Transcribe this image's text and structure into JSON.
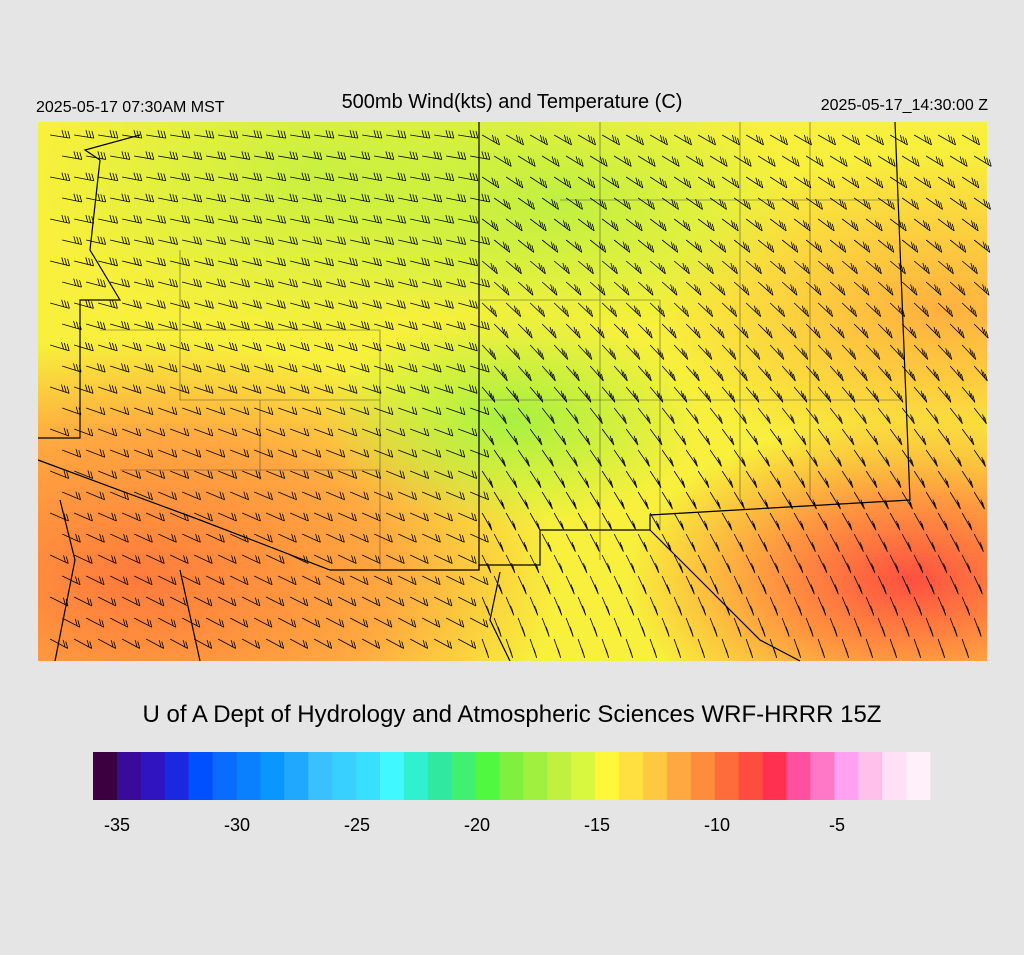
{
  "header": {
    "local_time": "2025-05-17 07:30AM MST",
    "title": "500mb Wind(kts) and Temperature (C)",
    "utc_time": "2025-05-17_14:30:00 Z"
  },
  "footer": "U of A Dept of Hydrology and Atmospheric Sciences WRF-HRRR 15Z",
  "colorbar": {
    "colors": [
      "#3a0040",
      "#3a0a9a",
      "#3014c0",
      "#1a28e0",
      "#0050ff",
      "#0a6cff",
      "#0a80ff",
      "#0a96ff",
      "#20a8ff",
      "#38c0ff",
      "#38d0ff",
      "#38e0ff",
      "#40f8ff",
      "#30f0d0",
      "#30e8a0",
      "#40f070",
      "#50f840",
      "#80f040",
      "#a0f040",
      "#c0f040",
      "#d8f840",
      "#fff838",
      "#ffe040",
      "#ffc840",
      "#ffa840",
      "#ff8c3c",
      "#ff6c3c",
      "#ff4c40",
      "#ff3050",
      "#ff50a0",
      "#ff78c8",
      "#ffa0f0",
      "#ffc0ec",
      "#ffe0f4",
      "#fff0fa"
    ],
    "ticks": [
      -35,
      -30,
      -25,
      -20,
      -15,
      -10,
      -5
    ]
  }
}
